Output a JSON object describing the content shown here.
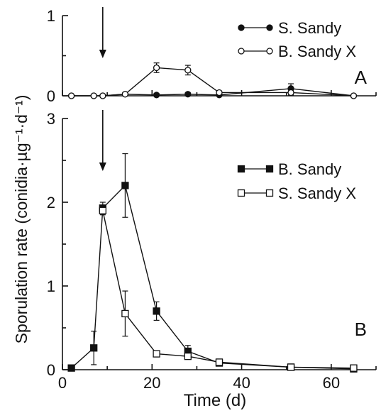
{
  "chart_data": [
    {
      "panel": "A",
      "type": "line",
      "ylim": [
        0,
        1
      ],
      "yticks": [
        0,
        1
      ],
      "xlim": [
        0,
        70
      ],
      "xticks": [
        0,
        20,
        40,
        60
      ],
      "arrow_x": 9,
      "legend": {
        "placement": "top-right"
      },
      "series": [
        {
          "name": "S. Sandy",
          "marker": "filled-circle",
          "x": [
            2,
            7,
            9,
            14,
            21,
            28,
            35,
            51,
            65
          ],
          "y": [
            0,
            0,
            0,
            0.02,
            0.01,
            0.02,
            0.01,
            0.09,
            0.0
          ],
          "err": [
            0,
            0,
            0,
            0.02,
            0.02,
            0.02,
            0.02,
            0.06,
            0
          ]
        },
        {
          "name": "B. Sandy X",
          "marker": "open-circle",
          "x": [
            2,
            7,
            9,
            14,
            21,
            28,
            35,
            51,
            65
          ],
          "y": [
            0,
            0,
            0,
            0.02,
            0.35,
            0.32,
            0.04,
            0.04,
            0.0
          ],
          "err": [
            0,
            0,
            0,
            0.02,
            0.06,
            0.06,
            0.02,
            0.03,
            0
          ]
        }
      ]
    },
    {
      "panel": "B",
      "type": "line",
      "ylim": [
        0,
        3
      ],
      "yticks": [
        0,
        1,
        2,
        3
      ],
      "xlim": [
        0,
        70
      ],
      "xticks": [
        0,
        20,
        40,
        60
      ],
      "arrow_x": 9,
      "legend": {
        "placement": "top-right"
      },
      "series": [
        {
          "name": "B. Sandy",
          "marker": "filled-square",
          "x": [
            2,
            7,
            9,
            14,
            21,
            28,
            35,
            51,
            65
          ],
          "y": [
            0.02,
            0.26,
            1.93,
            2.2,
            0.7,
            0.22,
            0.08,
            0.03,
            0.01
          ],
          "err": [
            0,
            0.2,
            0.07,
            0.38,
            0.11,
            0.07,
            0.03,
            0.02,
            0.01
          ]
        },
        {
          "name": "S. Sandy X",
          "marker": "open-square",
          "x": [
            9,
            14,
            21,
            28,
            35,
            51,
            65
          ],
          "y": [
            1.9,
            0.67,
            0.19,
            0.16,
            0.09,
            0.03,
            0.02
          ],
          "err": [
            0.05,
            0.27,
            0.02,
            0.03,
            0.02,
            0.01,
            0.01
          ]
        }
      ]
    }
  ],
  "labels": {
    "panel_a": "A",
    "panel_b": "B",
    "y_axis": "Sporulation rate (conidia·µg⁻¹·d⁻¹)",
    "x_axis": "Time (d)"
  }
}
